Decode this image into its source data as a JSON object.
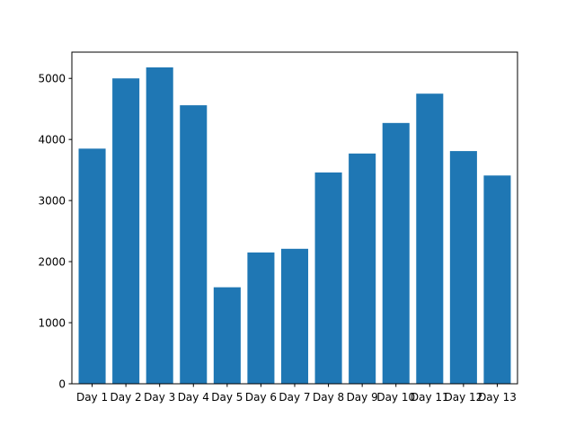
{
  "chart_data": {
    "type": "bar",
    "title": "",
    "xlabel": "",
    "ylabel": "",
    "categories": [
      "Day 1",
      "Day 2",
      "Day 3",
      "Day 4",
      "Day 5",
      "Day 6",
      "Day 7",
      "Day 8",
      "Day 9",
      "Day 10",
      "Day 11",
      "Day 12",
      "Day 13"
    ],
    "values": [
      3850,
      5000,
      5180,
      4560,
      1580,
      2150,
      2210,
      3460,
      3770,
      4270,
      4750,
      3810,
      3410
    ],
    "ylim": [
      0,
      5430
    ],
    "yticks": [
      0,
      1000,
      2000,
      3000,
      4000,
      5000
    ],
    "bar_color": "#1f77b4",
    "grid": false,
    "legend": "none"
  }
}
